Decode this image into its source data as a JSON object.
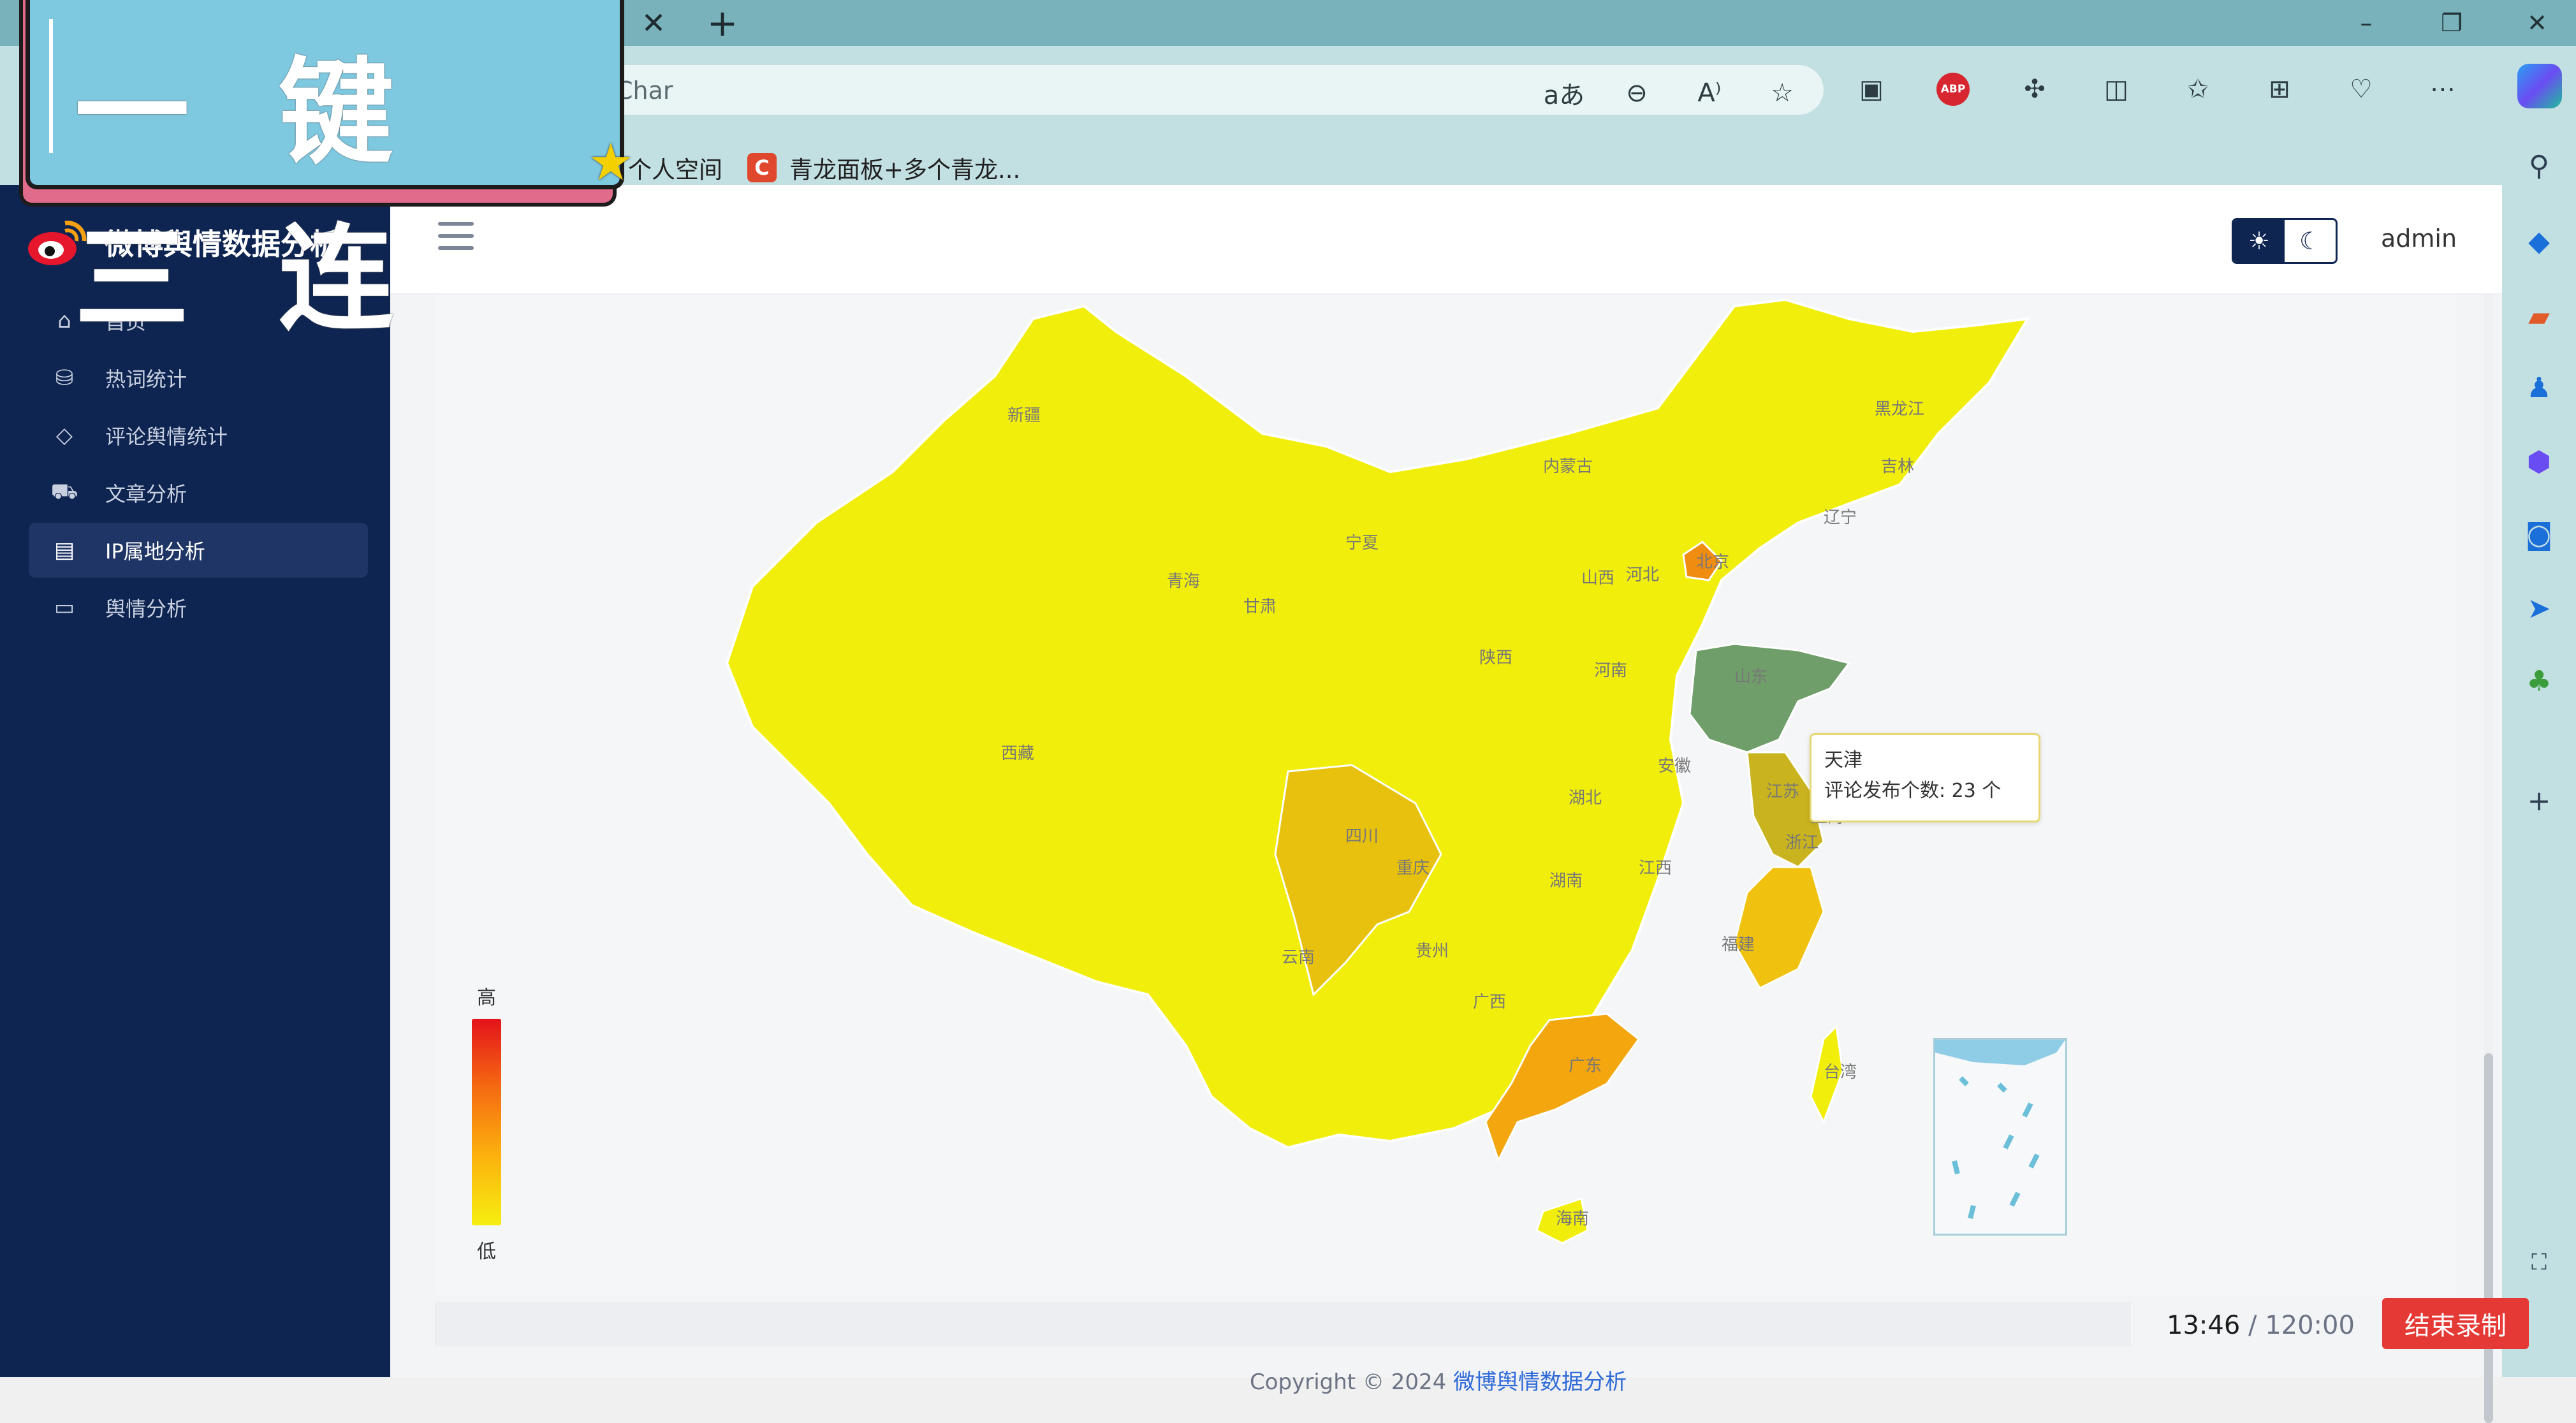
{
  "browser": {
    "address_text": "Char",
    "favorites": [
      {
        "label": "个人空间"
      },
      {
        "label": "青龙面板+多个青龙..."
      }
    ],
    "abp_label": "ABP"
  },
  "overlay": {
    "banner_text": "一键三连"
  },
  "app": {
    "title": "微博舆情数据分析",
    "user": "admin",
    "nav": [
      {
        "label": "首页",
        "icon": "home-icon"
      },
      {
        "label": "热词统计",
        "icon": "chart-icon"
      },
      {
        "label": "评论舆情统计",
        "icon": "tag-icon"
      },
      {
        "label": "文章分析",
        "icon": "cart-icon"
      },
      {
        "label": "IP属地分析",
        "icon": "map-icon",
        "active": true
      },
      {
        "label": "舆情分析",
        "icon": "calendar-icon"
      }
    ],
    "footer_prefix": "Copyright © 2024",
    "footer_link": "微博舆情数据分析"
  },
  "map": {
    "legend_high": "高",
    "legend_low": "低",
    "province_labels": [
      "新疆",
      "西藏",
      "青海",
      "甘肃",
      "宁夏",
      "内蒙古",
      "黑龙江",
      "吉林",
      "辽宁",
      "北京",
      "河北",
      "山西",
      "山东",
      "陕西",
      "河南",
      "四川",
      "重庆",
      "湖北",
      "安徽",
      "江苏",
      "浙江",
      "上海",
      "湖南",
      "江西",
      "福建",
      "贵州",
      "云南",
      "广西",
      "广东",
      "台湾",
      "海南"
    ],
    "tooltip": {
      "name": "天津",
      "metric": "评论发布个数:",
      "value": "23 个"
    }
  },
  "recording": {
    "elapsed": "13:46",
    "total": "/ 120:00",
    "stop_label": "结束录制"
  }
}
